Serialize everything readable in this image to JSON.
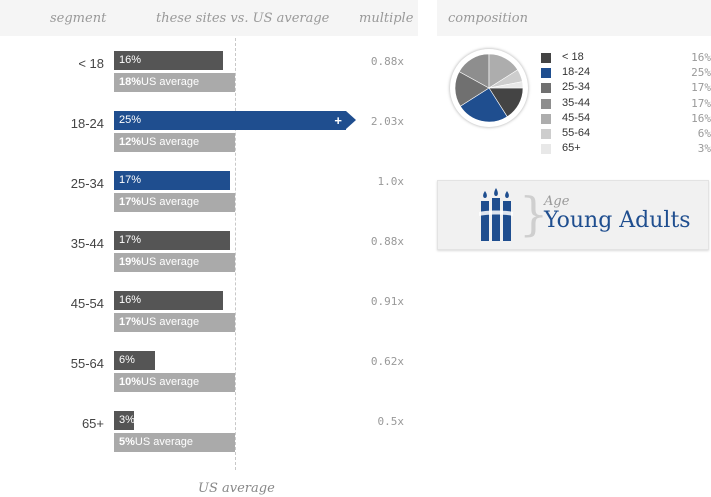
{
  "left_header": {
    "segment": "segment",
    "these_sites": "these sites vs. US average",
    "multiple": "multiple"
  },
  "rows": [
    {
      "segment": "< 18",
      "site_pct": "16%",
      "site_value": 16,
      "avg_pct": "18%",
      "avg_value": 18,
      "avg_label": "US average",
      "multiple": "0.88x",
      "highlight": false,
      "over_scale": false
    },
    {
      "segment": "18-24",
      "site_pct": "25%",
      "site_value": 25,
      "avg_pct": "12%",
      "avg_value": 12,
      "avg_label": "US average",
      "multiple": "2.03x",
      "highlight": true,
      "over_scale": true,
      "plus": "+"
    },
    {
      "segment": "25-34",
      "site_pct": "17%",
      "site_value": 17,
      "avg_pct": "17%",
      "avg_value": 17,
      "avg_label": "US average",
      "multiple": "1.0x",
      "highlight": true,
      "over_scale": false
    },
    {
      "segment": "35-44",
      "site_pct": "17%",
      "site_value": 17,
      "avg_pct": "19%",
      "avg_value": 19,
      "avg_label": "US average",
      "multiple": "0.88x",
      "highlight": false,
      "over_scale": false
    },
    {
      "segment": "45-54",
      "site_pct": "16%",
      "site_value": 16,
      "avg_pct": "17%",
      "avg_value": 17,
      "avg_label": "US average",
      "multiple": "0.91x",
      "highlight": false,
      "over_scale": false
    },
    {
      "segment": "55-64",
      "site_pct": "6%",
      "site_value": 6,
      "avg_pct": "10%",
      "avg_value": 10,
      "avg_label": "US average",
      "multiple": "0.62x",
      "highlight": false,
      "over_scale": false
    },
    {
      "segment": "65+",
      "site_pct": "3%",
      "site_value": 3,
      "avg_pct": "5%",
      "avg_value": 5,
      "avg_label": "US average",
      "multiple": "0.5x",
      "highlight": false,
      "over_scale": false
    }
  ],
  "us_average_caption": "US average",
  "colors": {
    "site_bar": "#555555",
    "highlight_bar": "#1f4e8f",
    "avg_bar": "#aaaaaa"
  },
  "composition": {
    "title": "composition",
    "items": [
      {
        "label": "< 18",
        "value": "16%",
        "share": 16,
        "color": "#444444"
      },
      {
        "label": "18-24",
        "value": "25%",
        "share": 25,
        "color": "#1f4e8f"
      },
      {
        "label": "25-34",
        "value": "17%",
        "share": 17,
        "color": "#707070"
      },
      {
        "label": "35-44",
        "value": "17%",
        "share": 17,
        "color": "#8e8e8e"
      },
      {
        "label": "45-54",
        "value": "16%",
        "share": 16,
        "color": "#adadad"
      },
      {
        "label": "55-64",
        "value": "6%",
        "share": 6,
        "color": "#cdcdcd"
      },
      {
        "label": "65+",
        "value": "3%",
        "share": 3,
        "color": "#e8e8e8"
      }
    ]
  },
  "age_card": {
    "small": "Age",
    "big": "Young Adults",
    "icon": "candles-icon"
  }
}
